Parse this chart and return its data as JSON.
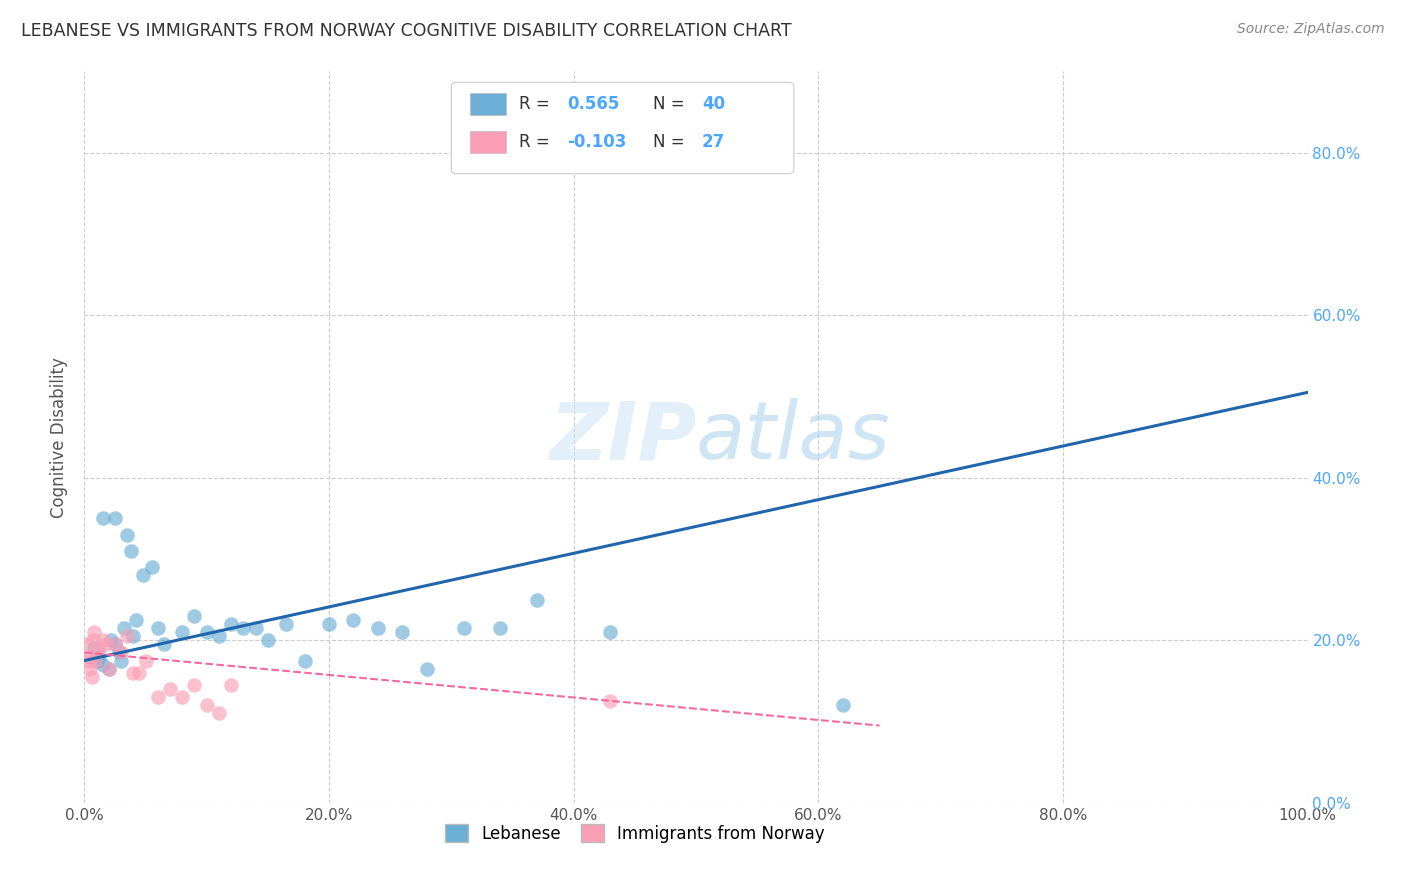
{
  "title": "LEBANESE VS IMMIGRANTS FROM NORWAY COGNITIVE DISABILITY CORRELATION CHART",
  "source": "Source: ZipAtlas.com",
  "ylabel": "Cognitive Disability",
  "watermark": "ZIPatlas",
  "xlim": [
    0,
    1.0
  ],
  "ylim": [
    0,
    0.9
  ],
  "xticks": [
    0.0,
    0.2,
    0.4,
    0.6,
    0.8,
    1.0
  ],
  "yticks": [
    0.0,
    0.2,
    0.4,
    0.6,
    0.8
  ],
  "ytick_labels_right": [
    "0.0%",
    "20.0%",
    "40.0%",
    "60.0%",
    "80.0%"
  ],
  "xtick_labels": [
    "0.0%",
    "20.0%",
    "40.0%",
    "60.0%",
    "80.0%",
    "100.0%"
  ],
  "blue_color": "#6baed6",
  "pink_color": "#fa9fb5",
  "blue_line_color": "#2166ac",
  "pink_line_color": "#f768a1",
  "grid_color": "#cccccc",
  "title_color": "#333333",
  "right_label_color": "#4da6ff",
  "blue_points_x": [
    0.008,
    0.01,
    0.012,
    0.015,
    0.02,
    0.022,
    0.025,
    0.028,
    0.03,
    0.032,
    0.035,
    0.038,
    0.04,
    0.042,
    0.048,
    0.055,
    0.06,
    0.065,
    0.08,
    0.09,
    0.1,
    0.11,
    0.12,
    0.13,
    0.14,
    0.15,
    0.165,
    0.18,
    0.2,
    0.22,
    0.24,
    0.26,
    0.28,
    0.31,
    0.34,
    0.37,
    0.43,
    0.015,
    0.025,
    0.62
  ],
  "blue_points_y": [
    0.19,
    0.175,
    0.18,
    0.17,
    0.165,
    0.2,
    0.195,
    0.185,
    0.175,
    0.215,
    0.33,
    0.31,
    0.205,
    0.225,
    0.28,
    0.29,
    0.215,
    0.195,
    0.21,
    0.23,
    0.21,
    0.205,
    0.22,
    0.215,
    0.215,
    0.2,
    0.22,
    0.175,
    0.22,
    0.225,
    0.215,
    0.21,
    0.165,
    0.215,
    0.215,
    0.25,
    0.21,
    0.35,
    0.35,
    0.12
  ],
  "pink_points_x": [
    0.002,
    0.003,
    0.004,
    0.005,
    0.006,
    0.007,
    0.008,
    0.009,
    0.01,
    0.012,
    0.015,
    0.018,
    0.02,
    0.025,
    0.03,
    0.035,
    0.04,
    0.045,
    0.05,
    0.06,
    0.07,
    0.08,
    0.09,
    0.1,
    0.11,
    0.12,
    0.43
  ],
  "pink_points_y": [
    0.195,
    0.18,
    0.175,
    0.165,
    0.155,
    0.2,
    0.21,
    0.175,
    0.185,
    0.19,
    0.2,
    0.195,
    0.165,
    0.195,
    0.185,
    0.205,
    0.16,
    0.16,
    0.175,
    0.13,
    0.14,
    0.13,
    0.145,
    0.12,
    0.11,
    0.145,
    0.125
  ],
  "blue_trend_x": [
    0.0,
    1.0
  ],
  "blue_trend_y": [
    0.175,
    0.505
  ],
  "pink_trend_x": [
    0.0,
    0.65
  ],
  "pink_trend_y": [
    0.185,
    0.095
  ],
  "legend_items": [
    {
      "label_r": "R = ",
      "val_r": "0.565",
      "label_n": "N = ",
      "val_n": "40"
    },
    {
      "label_r": "R = ",
      "val_r": "-0.103",
      "label_n": "N = ",
      "val_n": "27"
    }
  ]
}
